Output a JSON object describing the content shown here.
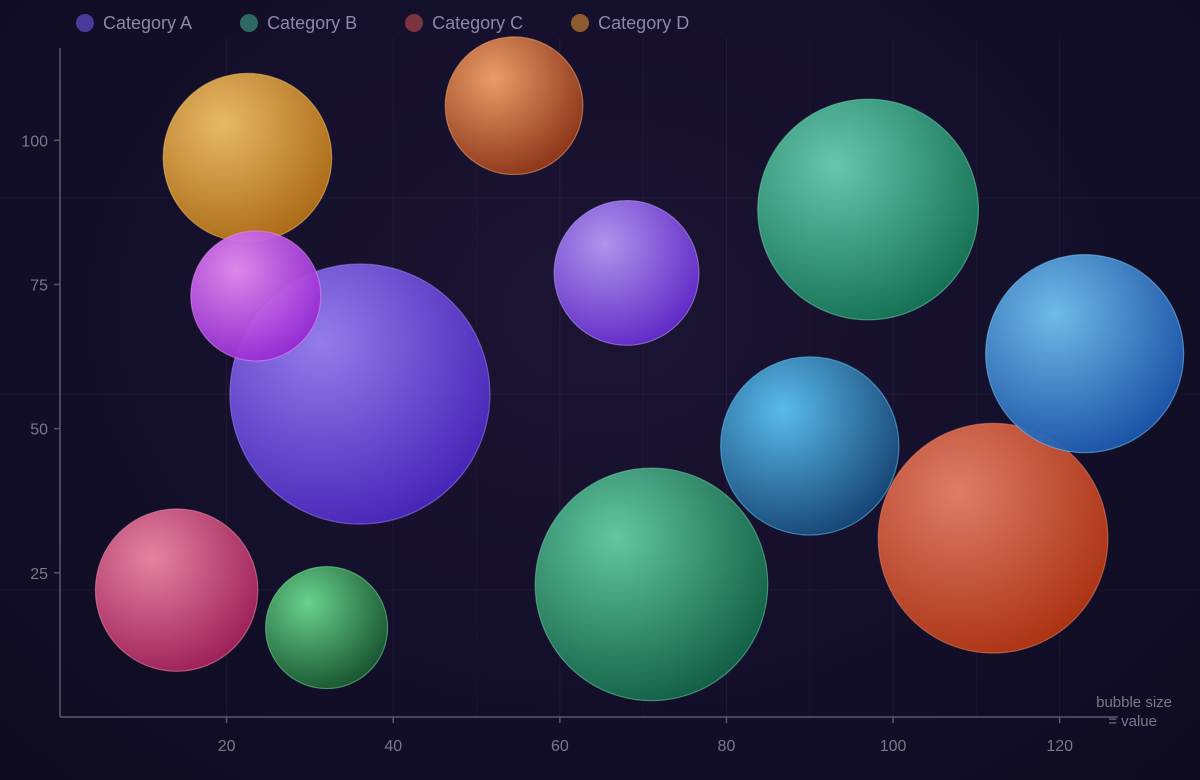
{
  "chart_data": {
    "type": "scatter",
    "title": "",
    "xlabel": "",
    "ylabel": "",
    "xlim": [
      0,
      127
    ],
    "ylim": [
      0,
      116
    ],
    "x_ticks": [
      20,
      40,
      60,
      80,
      100,
      120
    ],
    "y_ticks": [
      25,
      50,
      75,
      100
    ],
    "grid": true,
    "legend_position": "top-left",
    "size_note": [
      "bubble size",
      "= value"
    ],
    "legend": [
      {
        "name": "Category A",
        "color": "#4a3a9c"
      },
      {
        "name": "Category B",
        "color": "#2e6a62"
      },
      {
        "name": "Category C",
        "color": "#7a3440"
      },
      {
        "name": "Category D",
        "color": "#8c5c30"
      }
    ],
    "points": [
      {
        "x": 36,
        "y": 56,
        "size": 100,
        "color_light": "#9b82f4",
        "color_dark": "#4420bb"
      },
      {
        "x": 71,
        "y": 23,
        "size": 80,
        "color_light": "#66d0a6",
        "color_dark": "#0c5c40"
      },
      {
        "x": 112,
        "y": 31,
        "size": 78,
        "color_light": "#e8826c",
        "color_dark": "#b0300c"
      },
      {
        "x": 97,
        "y": 88,
        "size": 72,
        "color_light": "#6ad1b3",
        "color_dark": "#107050"
      },
      {
        "x": 123,
        "y": 63,
        "size": 58,
        "color_light": "#74c4f0",
        "color_dark": "#154ea8"
      },
      {
        "x": 90,
        "y": 47,
        "size": 47,
        "color_light": "#5cc4f4",
        "color_dark": "#123f70"
      },
      {
        "x": 22.5,
        "y": 97,
        "size": 42,
        "color_light": "#f2c26a",
        "color_dark": "#b06a10"
      },
      {
        "x": 14,
        "y": 22,
        "size": 39,
        "color_light": "#f08aa8",
        "color_dark": "#a01a55"
      },
      {
        "x": 68,
        "y": 77,
        "size": 31,
        "color_light": "#b69cf6",
        "color_dark": "#5f22cc"
      },
      {
        "x": 54.5,
        "y": 106,
        "size": 28,
        "color_light": "#f4a46a",
        "color_dark": "#8c3012"
      },
      {
        "x": 23.5,
        "y": 73,
        "size": 25,
        "color_light": "#e88ef4",
        "color_dark": "#8e22d0"
      },
      {
        "x": 32,
        "y": 15.5,
        "size": 22,
        "color_light": "#6edc92",
        "color_dark": "#124f2a"
      }
    ]
  }
}
